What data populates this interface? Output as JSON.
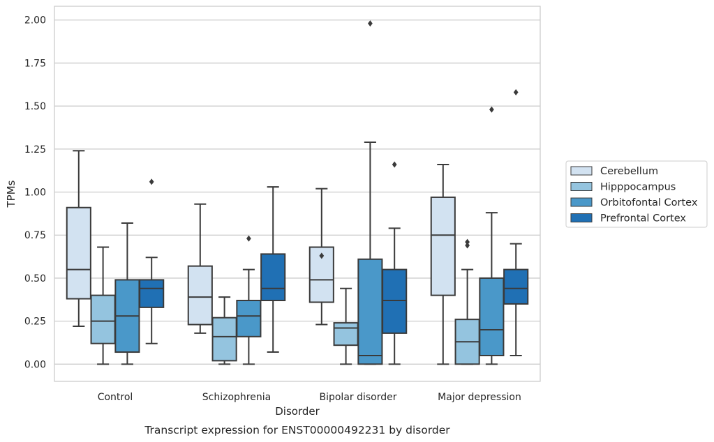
{
  "caption": "Transcript expression for ENST00000492231 by disorder",
  "chart_data": {
    "type": "box",
    "xlabel": "Disorder",
    "ylabel": "TPMs",
    "ylim": [
      -0.1,
      2.08
    ],
    "yticks": [
      "0.00",
      "0.25",
      "0.50",
      "0.75",
      "1.00",
      "1.25",
      "1.50",
      "1.75",
      "2.00"
    ],
    "grid": "horizontal",
    "legend_position": "right",
    "categories": [
      "Control",
      "Schizophrenia",
      "Bipolar disorder",
      "Major depression"
    ],
    "series": [
      {
        "name": "Cerebellum",
        "color": "#d2e2f1",
        "boxes": [
          {
            "whisker_low": 0.22,
            "q1": 0.38,
            "median": 0.55,
            "q3": 0.91,
            "whisker_high": 1.24,
            "outliers": []
          },
          {
            "whisker_low": 0.18,
            "q1": 0.23,
            "median": 0.39,
            "q3": 0.57,
            "whisker_high": 0.93,
            "outliers": []
          },
          {
            "whisker_low": 0.23,
            "q1": 0.36,
            "median": 0.49,
            "q3": 0.68,
            "whisker_high": 1.02,
            "outliers": [
              0.63
            ]
          },
          {
            "whisker_low": 0.0,
            "q1": 0.4,
            "median": 0.75,
            "q3": 0.97,
            "whisker_high": 1.16,
            "outliers": []
          }
        ]
      },
      {
        "name": "Hipppocampus",
        "color": "#94c4df",
        "boxes": [
          {
            "whisker_low": 0.0,
            "q1": 0.12,
            "median": 0.25,
            "q3": 0.4,
            "whisker_high": 0.68,
            "outliers": []
          },
          {
            "whisker_low": 0.0,
            "q1": 0.02,
            "median": 0.16,
            "q3": 0.27,
            "whisker_high": 0.39,
            "outliers": []
          },
          {
            "whisker_low": 0.0,
            "q1": 0.11,
            "median": 0.21,
            "q3": 0.24,
            "whisker_high": 0.44,
            "outliers": []
          },
          {
            "whisker_low": 0.0,
            "q1": 0.0,
            "median": 0.13,
            "q3": 0.26,
            "whisker_high": 0.55,
            "outliers": [
              0.69,
              0.71
            ]
          }
        ]
      },
      {
        "name": "Orbitofontal Cortex",
        "color": "#4a98c9",
        "boxes": [
          {
            "whisker_low": 0.0,
            "q1": 0.07,
            "median": 0.28,
            "q3": 0.49,
            "whisker_high": 0.82,
            "outliers": []
          },
          {
            "whisker_low": 0.0,
            "q1": 0.16,
            "median": 0.28,
            "q3": 0.37,
            "whisker_high": 0.55,
            "outliers": [
              0.73
            ]
          },
          {
            "whisker_low": 0.0,
            "q1": 0.0,
            "median": 0.05,
            "q3": 0.61,
            "whisker_high": 1.29,
            "outliers": [
              1.98
            ]
          },
          {
            "whisker_low": 0.0,
            "q1": 0.05,
            "median": 0.2,
            "q3": 0.5,
            "whisker_high": 0.88,
            "outliers": [
              1.48
            ]
          }
        ]
      },
      {
        "name": "Prefrontal Cortex",
        "color": "#2070b4",
        "boxes": [
          {
            "whisker_low": 0.12,
            "q1": 0.33,
            "median": 0.44,
            "q3": 0.49,
            "whisker_high": 0.62,
            "outliers": [
              1.06
            ]
          },
          {
            "whisker_low": 0.07,
            "q1": 0.37,
            "median": 0.44,
            "q3": 0.64,
            "whisker_high": 1.03,
            "outliers": []
          },
          {
            "whisker_low": 0.0,
            "q1": 0.18,
            "median": 0.37,
            "q3": 0.55,
            "whisker_high": 0.79,
            "outliers": [
              1.16
            ]
          },
          {
            "whisker_low": 0.05,
            "q1": 0.35,
            "median": 0.44,
            "q3": 0.55,
            "whisker_high": 0.7,
            "outliers": [
              1.58
            ]
          }
        ]
      }
    ]
  }
}
